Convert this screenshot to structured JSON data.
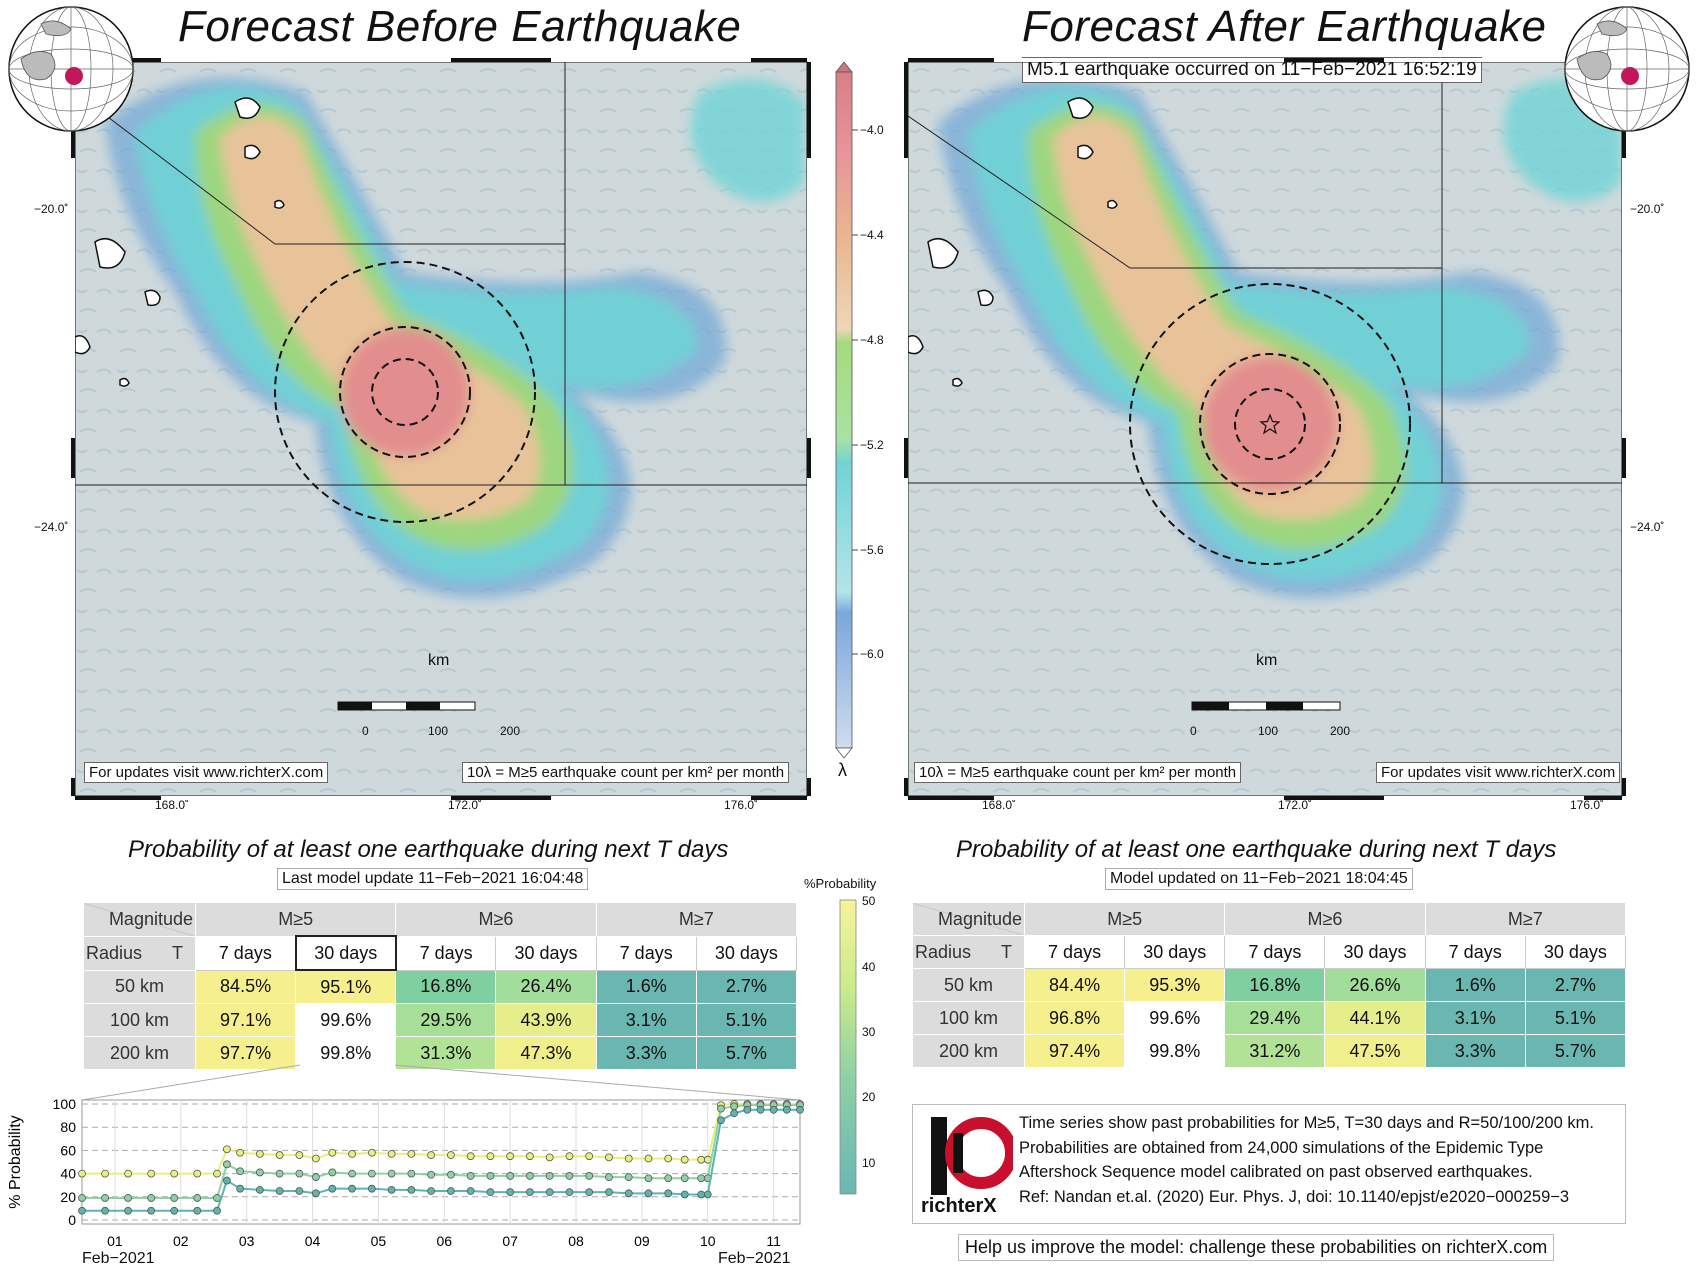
{
  "left_panel": {
    "title": "Forecast Before Earthquake",
    "url_note": "For updates visit www.richterX.com",
    "lambda_note": "10λ = M≥5 earthquake count per km² per month",
    "lat_labels": [
      "−20.0˚",
      "−24.0˚"
    ],
    "lon_labels": [
      "168.0˚",
      "172.0˚",
      "176.0˚"
    ],
    "scale_unit": "km",
    "scale_ticks": [
      "0",
      "100",
      "200"
    ]
  },
  "right_panel": {
    "title": "Forecast After Earthquake",
    "quake_note": "M5.1 earthquake occurred on 11−Feb−2021 16:52:19",
    "url_note": "For updates visit www.richterX.com",
    "lambda_note": "10λ = M≥5 earthquake count per km² per month",
    "lat_labels": [
      "−20.0˚",
      "−24.0˚"
    ],
    "lon_labels": [
      "168.0˚",
      "172.0˚",
      "176.0˚"
    ],
    "scale_unit": "km",
    "scale_ticks": [
      "0",
      "100",
      "200"
    ]
  },
  "colorbar": {
    "ticks": [
      "−4.0",
      "−4.4",
      "−4.8",
      "−5.2",
      "−5.6",
      "−6.0"
    ],
    "symbol": "λ"
  },
  "prob_colorbar": {
    "title": "%Probability",
    "ticks": [
      "50",
      "40",
      "30",
      "20",
      "10"
    ]
  },
  "left_table": {
    "heading": "Probability of at least one earthquake during next T days",
    "update": "Last model update 11−Feb−2021 16:04:48",
    "corner_top": "Magnitude",
    "corner_bottom_left": "Radius",
    "corner_bottom_right": "T",
    "magnitudes": [
      "M≥5",
      "M≥6",
      "M≥7"
    ],
    "periods": [
      "7 days",
      "30 days",
      "7 days",
      "30 days",
      "7 days",
      "30 days"
    ],
    "rows": [
      {
        "radius": "50 km",
        "values": [
          "84.5%",
          "95.1%",
          "16.8%",
          "26.4%",
          "1.6%",
          "2.7%"
        ],
        "colors": [
          "#f6ef8e",
          "#f6ef8e",
          "#7fcfa1",
          "#a2dd9b",
          "#6ab6b0",
          "#6ab6b0"
        ]
      },
      {
        "radius": "100 km",
        "values": [
          "97.1%",
          "99.6%",
          "29.5%",
          "43.9%",
          "3.1%",
          "5.1%"
        ],
        "colors": [
          "#f6ef8e",
          "#ffffff",
          "#a8df98",
          "#e6ee8c",
          "#6ab6b0",
          "#6ab6b0"
        ]
      },
      {
        "radius": "200 km",
        "values": [
          "97.7%",
          "99.8%",
          "31.3%",
          "47.3%",
          "3.3%",
          "5.7%"
        ],
        "colors": [
          "#f6ef8e",
          "#ffffff",
          "#b2e295",
          "#eff08b",
          "#6ab6b0",
          "#6ab6b0"
        ]
      }
    ]
  },
  "right_table": {
    "heading": "Probability of at least one earthquake during next T days",
    "update": "Model updated on 11−Feb−2021 18:04:45",
    "corner_top": "Magnitude",
    "corner_bottom_left": "Radius",
    "corner_bottom_right": "T",
    "magnitudes": [
      "M≥5",
      "M≥6",
      "M≥7"
    ],
    "periods": [
      "7 days",
      "30 days",
      "7 days",
      "30 days",
      "7 days",
      "30 days"
    ],
    "rows": [
      {
        "radius": "50 km",
        "values": [
          "84.4%",
          "95.3%",
          "16.8%",
          "26.6%",
          "1.6%",
          "2.7%"
        ],
        "colors": [
          "#f6ef8e",
          "#f6ef8e",
          "#7fcfa1",
          "#a2dd9b",
          "#6ab6b0",
          "#6ab6b0"
        ]
      },
      {
        "radius": "100 km",
        "values": [
          "96.8%",
          "99.6%",
          "29.4%",
          "44.1%",
          "3.1%",
          "5.1%"
        ],
        "colors": [
          "#f6ef8e",
          "#ffffff",
          "#a8df98",
          "#e6ee8c",
          "#6ab6b0",
          "#6ab6b0"
        ]
      },
      {
        "radius": "200 km",
        "values": [
          "97.4%",
          "99.8%",
          "31.2%",
          "47.5%",
          "3.3%",
          "5.7%"
        ],
        "colors": [
          "#f6ef8e",
          "#ffffff",
          "#b2e295",
          "#eff08b",
          "#6ab6b0",
          "#6ab6b0"
        ]
      }
    ]
  },
  "info": {
    "lines": [
      "Time series show past probabilities for M≥5, T=30 days and R=50/100/200 km.",
      "Probabilities are obtained from 24,000 simulations of the Epidemic Type",
      "Aftershock Sequence model calibrated on past observed earthquakes.",
      "Ref: Nandan et.al. (2020) Eur. Phys. J, doi: 10.1140/epjst/e2020−000259−3"
    ],
    "logo_text": "richterX",
    "help": "Help us improve the model: challenge these probabilities on richterX.com"
  },
  "chart_data": {
    "type": "line",
    "ylabel": "% Probability",
    "ylim": [
      0,
      100
    ],
    "yticks": [
      0,
      20,
      40,
      60,
      80,
      100
    ],
    "xlim": [
      0.5,
      11.4
    ],
    "xticks": [
      1,
      2,
      3,
      4,
      5,
      6,
      7,
      8,
      9,
      10,
      11
    ],
    "xtick_labels": [
      "01",
      "02",
      "03",
      "04",
      "05",
      "06",
      "07",
      "08",
      "09",
      "10",
      "11"
    ],
    "x_start_label": "Feb−2021",
    "x_end_label": "Feb−2021",
    "grid": true,
    "series": [
      {
        "color": "#e8ef7c",
        "x": [
          0.5,
          0.85,
          1.2,
          1.55,
          1.9,
          2.25,
          2.55,
          2.7,
          2.9,
          3.2,
          3.5,
          3.8,
          4.05,
          4.3,
          4.6,
          4.9,
          5.2,
          5.5,
          5.8,
          6.1,
          6.4,
          6.7,
          7.0,
          7.3,
          7.6,
          7.9,
          8.2,
          8.5,
          8.8,
          9.1,
          9.4,
          9.65,
          9.9,
          10.0,
          10.2,
          10.4,
          10.6,
          10.8,
          11.0,
          11.2,
          11.4
        ],
        "y": [
          40,
          40,
          40,
          40,
          40,
          40,
          40,
          61,
          58,
          57,
          56,
          56,
          53,
          58,
          57,
          58,
          57,
          57,
          56,
          56,
          55,
          55,
          55,
          55,
          54,
          55,
          55,
          54,
          53,
          53,
          53,
          52,
          52,
          52,
          99,
          100,
          100,
          100,
          100,
          100,
          100
        ]
      },
      {
        "color": "#8fd1a4",
        "x": [
          0.5,
          0.85,
          1.2,
          1.55,
          1.9,
          2.25,
          2.55,
          2.7,
          2.9,
          3.2,
          3.5,
          3.8,
          4.05,
          4.3,
          4.6,
          4.9,
          5.2,
          5.5,
          5.8,
          6.1,
          6.4,
          6.7,
          7.0,
          7.3,
          7.6,
          7.9,
          8.2,
          8.5,
          8.8,
          9.1,
          9.4,
          9.65,
          9.9,
          10.0,
          10.2,
          10.4,
          10.6,
          10.8,
          11.0,
          11.2,
          11.4
        ],
        "y": [
          19,
          19,
          19,
          19,
          19,
          19,
          19,
          48,
          42,
          41,
          40,
          40,
          37,
          41,
          40,
          40,
          40,
          40,
          39,
          39,
          38,
          38,
          38,
          38,
          38,
          38,
          38,
          37,
          37,
          36,
          36,
          36,
          36,
          36,
          96,
          98,
          99,
          99,
          99,
          99,
          99
        ]
      },
      {
        "color": "#5fb3b0",
        "x": [
          0.5,
          0.85,
          1.2,
          1.55,
          1.9,
          2.25,
          2.55,
          2.7,
          2.9,
          3.2,
          3.5,
          3.8,
          4.05,
          4.3,
          4.6,
          4.9,
          5.2,
          5.5,
          5.8,
          6.1,
          6.4,
          6.7,
          7.0,
          7.3,
          7.6,
          7.9,
          8.2,
          8.5,
          8.8,
          9.1,
          9.4,
          9.65,
          9.9,
          10.0,
          10.2,
          10.4,
          10.6,
          10.8,
          11.0,
          11.2,
          11.4
        ],
        "y": [
          8,
          8,
          8,
          8,
          8,
          8,
          8,
          34,
          27,
          26,
          25,
          25,
          23,
          27,
          27,
          27,
          26,
          26,
          25,
          25,
          25,
          24,
          24,
          24,
          24,
          24,
          24,
          24,
          23,
          23,
          23,
          22,
          22,
          22,
          86,
          92,
          95,
          95,
          95,
          95,
          95
        ]
      }
    ]
  }
}
